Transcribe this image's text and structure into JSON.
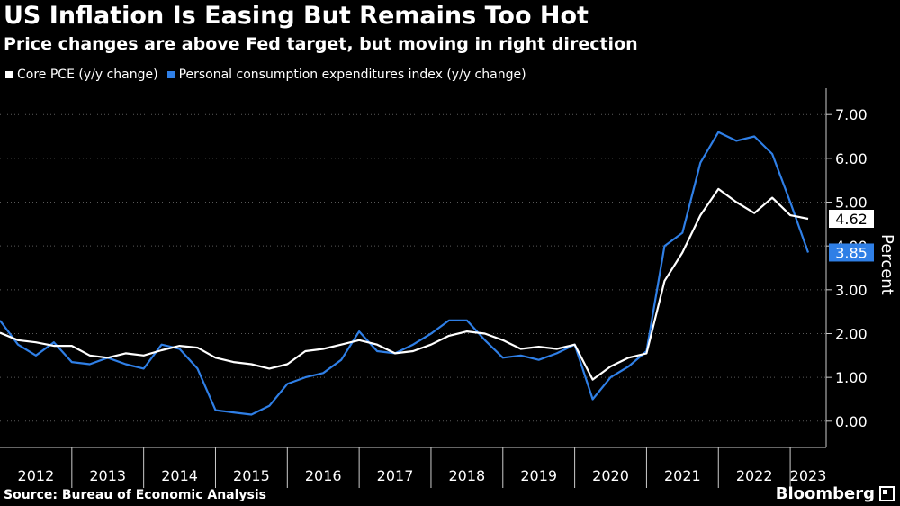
{
  "header": {
    "title": "US Inflation Is Easing But Remains Too Hot",
    "subtitle": "Price changes are above Fed target, but moving in right direction"
  },
  "footer": {
    "source": "Source: Bureau of Economic Analysis",
    "brand": "Bloomberg"
  },
  "colors": {
    "background": "#000000",
    "core_pce": "#ffffff",
    "pce": "#2f7fe6",
    "grid": "#5a5a5a"
  },
  "chart_data": {
    "type": "line",
    "ylabel": "Percent",
    "ylim": [
      -0.6,
      7.6
    ],
    "y_ticks": [
      "0.00",
      "1.00",
      "2.00",
      "3.00",
      "4.00",
      "5.00",
      "6.00",
      "7.00"
    ],
    "x_labels": [
      "2012",
      "2013",
      "2014",
      "2015",
      "2016",
      "2017",
      "2018",
      "2019",
      "2020",
      "2021",
      "2022",
      "2023"
    ],
    "xlim": [
      2012.0,
      2023.5
    ],
    "grid": "horizontal",
    "legend_position": "top-left",
    "series": [
      {
        "name": "Core PCE (y/y change)",
        "color": "#ffffff",
        "end_label": "4.62",
        "points": [
          [
            2012.0,
            2.02
          ],
          [
            2012.25,
            1.85
          ],
          [
            2012.5,
            1.8
          ],
          [
            2012.75,
            1.72
          ],
          [
            2013.0,
            1.72
          ],
          [
            2013.25,
            1.5
          ],
          [
            2013.5,
            1.45
          ],
          [
            2013.75,
            1.55
          ],
          [
            2014.0,
            1.5
          ],
          [
            2014.25,
            1.62
          ],
          [
            2014.5,
            1.72
          ],
          [
            2014.75,
            1.68
          ],
          [
            2015.0,
            1.45
          ],
          [
            2015.25,
            1.35
          ],
          [
            2015.5,
            1.3
          ],
          [
            2015.75,
            1.2
          ],
          [
            2016.0,
            1.3
          ],
          [
            2016.25,
            1.6
          ],
          [
            2016.5,
            1.65
          ],
          [
            2016.75,
            1.75
          ],
          [
            2017.0,
            1.85
          ],
          [
            2017.25,
            1.75
          ],
          [
            2017.5,
            1.55
          ],
          [
            2017.75,
            1.6
          ],
          [
            2018.0,
            1.75
          ],
          [
            2018.25,
            1.95
          ],
          [
            2018.5,
            2.05
          ],
          [
            2018.75,
            2.0
          ],
          [
            2019.0,
            1.85
          ],
          [
            2019.25,
            1.65
          ],
          [
            2019.5,
            1.7
          ],
          [
            2019.75,
            1.65
          ],
          [
            2020.0,
            1.75
          ],
          [
            2020.25,
            0.95
          ],
          [
            2020.5,
            1.25
          ],
          [
            2020.75,
            1.45
          ],
          [
            2021.0,
            1.55
          ],
          [
            2021.25,
            3.2
          ],
          [
            2021.5,
            3.85
          ],
          [
            2021.75,
            4.7
          ],
          [
            2022.0,
            5.3
          ],
          [
            2022.25,
            5.0
          ],
          [
            2022.5,
            4.75
          ],
          [
            2022.75,
            5.1
          ],
          [
            2023.0,
            4.7
          ],
          [
            2023.25,
            4.62
          ]
        ]
      },
      {
        "name": "Personal consumption expenditures index (y/y change)",
        "color": "#2f7fe6",
        "end_label": "3.85",
        "points": [
          [
            2012.0,
            2.3
          ],
          [
            2012.25,
            1.75
          ],
          [
            2012.5,
            1.5
          ],
          [
            2012.75,
            1.8
          ],
          [
            2013.0,
            1.35
          ],
          [
            2013.25,
            1.3
          ],
          [
            2013.5,
            1.45
          ],
          [
            2013.75,
            1.3
          ],
          [
            2014.0,
            1.2
          ],
          [
            2014.25,
            1.75
          ],
          [
            2014.5,
            1.65
          ],
          [
            2014.75,
            1.2
          ],
          [
            2015.0,
            0.25
          ],
          [
            2015.25,
            0.2
          ],
          [
            2015.5,
            0.15
          ],
          [
            2015.75,
            0.35
          ],
          [
            2016.0,
            0.85
          ],
          [
            2016.25,
            1.0
          ],
          [
            2016.5,
            1.1
          ],
          [
            2016.75,
            1.4
          ],
          [
            2017.0,
            2.05
          ],
          [
            2017.25,
            1.6
          ],
          [
            2017.5,
            1.55
          ],
          [
            2017.75,
            1.75
          ],
          [
            2018.0,
            2.0
          ],
          [
            2018.25,
            2.3
          ],
          [
            2018.5,
            2.3
          ],
          [
            2018.75,
            1.85
          ],
          [
            2019.0,
            1.45
          ],
          [
            2019.25,
            1.5
          ],
          [
            2019.5,
            1.4
          ],
          [
            2019.75,
            1.55
          ],
          [
            2020.0,
            1.75
          ],
          [
            2020.25,
            0.5
          ],
          [
            2020.5,
            1.0
          ],
          [
            2020.75,
            1.25
          ],
          [
            2021.0,
            1.6
          ],
          [
            2021.25,
            4.0
          ],
          [
            2021.5,
            4.3
          ],
          [
            2021.75,
            5.9
          ],
          [
            2022.0,
            6.6
          ],
          [
            2022.25,
            6.4
          ],
          [
            2022.5,
            6.5
          ],
          [
            2022.75,
            6.1
          ],
          [
            2023.0,
            5.0
          ],
          [
            2023.25,
            3.85
          ]
        ]
      }
    ]
  }
}
